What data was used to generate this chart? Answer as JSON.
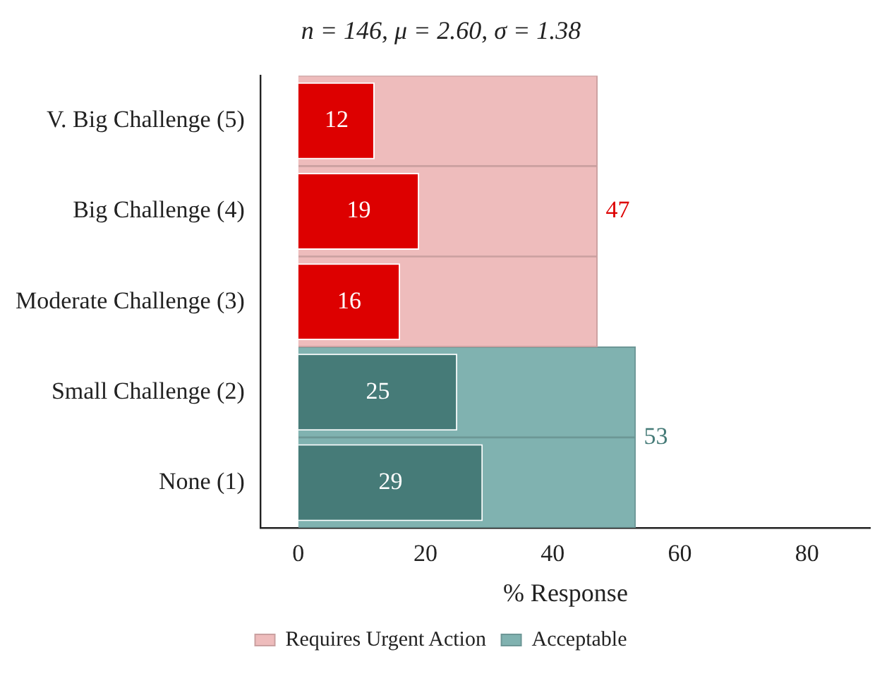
{
  "chart_data": {
    "type": "bar",
    "orientation": "horizontal",
    "title": "n = 146, μ = 2.60, σ = 1.38",
    "xlabel": "% Response",
    "categories": [
      "V. Big Challenge (5)",
      "Big Challenge (4)",
      "Moderate Challenge (3)",
      "Small Challenge (2)",
      "None (1)"
    ],
    "series": [
      {
        "name": "Requires Urgent Action",
        "color": "#eebcbc",
        "values": [
          47,
          47,
          47,
          null,
          null
        ],
        "value_labels": [
          null,
          "47",
          null,
          null,
          null
        ]
      },
      {
        "name": "Acceptable",
        "color": "#80b2b0",
        "values": [
          null,
          null,
          null,
          53,
          53
        ],
        "value_labels": [
          null,
          null,
          null,
          "53",
          null
        ]
      },
      {
        "colors": [
          "#dd0000",
          "#dd0000",
          "#dd0000",
          "#467b78",
          "#467b78"
        ],
        "values": [
          12,
          19,
          16,
          25,
          29
        ],
        "value_labels": [
          "12",
          "19",
          "16",
          "25",
          "29"
        ]
      }
    ],
    "xlim": [
      -6,
      90
    ],
    "xticks": [
      0,
      20,
      40,
      60,
      80
    ],
    "grid": false,
    "legend": "bottom"
  }
}
